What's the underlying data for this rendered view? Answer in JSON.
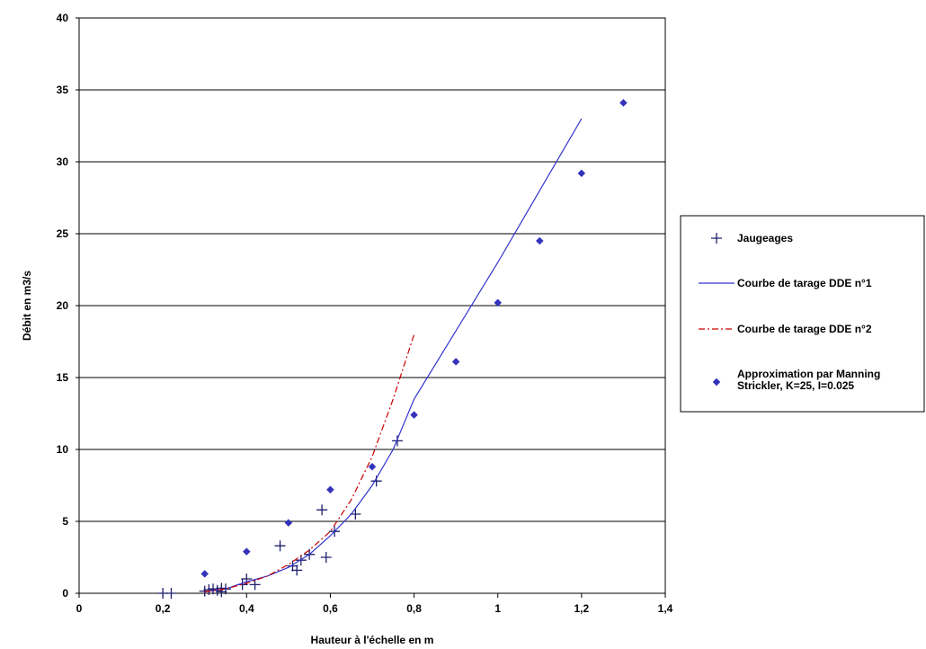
{
  "chart_data": {
    "type": "scatter",
    "xlabel": "Hauteur à l'échelle en m",
    "ylabel": "Débit en m3/s",
    "xlim": [
      0,
      1.4
    ],
    "ylim": [
      0,
      40
    ],
    "x_ticks": [
      "0",
      "0,2",
      "0,4",
      "0,6",
      "0,8",
      "1",
      "1,2",
      "1,4"
    ],
    "x_tick_values": [
      0,
      0.2,
      0.4,
      0.6,
      0.8,
      1.0,
      1.2,
      1.4
    ],
    "y_ticks": [
      "0",
      "5",
      "10",
      "15",
      "20",
      "25",
      "30",
      "35",
      "40"
    ],
    "y_tick_values": [
      0,
      5,
      10,
      15,
      20,
      25,
      30,
      35,
      40
    ],
    "grid": "horizontal",
    "legend_position": "right",
    "series": [
      {
        "name": "Jaugeages",
        "type": "scatter",
        "marker": "plus",
        "color": "#1f1f6e",
        "points": [
          [
            0.2,
            0.0
          ],
          [
            0.22,
            0.0
          ],
          [
            0.3,
            0.15
          ],
          [
            0.31,
            0.25
          ],
          [
            0.32,
            0.3
          ],
          [
            0.33,
            0.2
          ],
          [
            0.34,
            0.35
          ],
          [
            0.34,
            0.1
          ],
          [
            0.35,
            0.3
          ],
          [
            0.39,
            0.6
          ],
          [
            0.4,
            1.0
          ],
          [
            0.42,
            0.6
          ],
          [
            0.48,
            3.3
          ],
          [
            0.51,
            1.9
          ],
          [
            0.52,
            1.6
          ],
          [
            0.53,
            2.3
          ],
          [
            0.55,
            2.7
          ],
          [
            0.58,
            5.8
          ],
          [
            0.59,
            2.5
          ],
          [
            0.61,
            4.3
          ],
          [
            0.66,
            5.5
          ],
          [
            0.71,
            7.8
          ],
          [
            0.76,
            10.6
          ]
        ]
      },
      {
        "name": "Courbe de tarage DDE n°1",
        "type": "line",
        "style": "solid",
        "color": "#3333cc",
        "points": [
          [
            0.3,
            0.1
          ],
          [
            0.35,
            0.3
          ],
          [
            0.4,
            0.8
          ],
          [
            0.45,
            1.2
          ],
          [
            0.5,
            1.8
          ],
          [
            0.55,
            2.7
          ],
          [
            0.6,
            4.0
          ],
          [
            0.65,
            5.5
          ],
          [
            0.7,
            7.5
          ],
          [
            0.75,
            10.0
          ],
          [
            0.8,
            13.5
          ],
          [
            1.0,
            23.0
          ],
          [
            1.2,
            33.0
          ]
        ]
      },
      {
        "name": "Courbe de tarage DDE n°2",
        "type": "line",
        "style": "dash-dot",
        "color": "#cc0000",
        "points": [
          [
            0.3,
            0.1
          ],
          [
            0.35,
            0.3
          ],
          [
            0.4,
            0.7
          ],
          [
            0.45,
            1.2
          ],
          [
            0.5,
            2.0
          ],
          [
            0.55,
            3.0
          ],
          [
            0.6,
            4.3
          ],
          [
            0.65,
            6.5
          ],
          [
            0.7,
            9.5
          ],
          [
            0.75,
            13.5
          ],
          [
            0.8,
            18.0
          ]
        ]
      },
      {
        "name": "Approximation par Manning Strickler, K=25, I=0.025",
        "type": "scatter",
        "marker": "diamond",
        "color": "#3333bb",
        "points": [
          [
            0.3,
            1.35
          ],
          [
            0.4,
            2.9
          ],
          [
            0.5,
            4.9
          ],
          [
            0.6,
            7.2
          ],
          [
            0.7,
            8.8
          ],
          [
            0.8,
            12.4
          ],
          [
            0.9,
            16.1
          ],
          [
            1.0,
            20.2
          ],
          [
            1.1,
            24.5
          ],
          [
            1.2,
            29.2
          ],
          [
            1.3,
            34.1
          ]
        ]
      }
    ],
    "legend": [
      {
        "label": "Jaugeages",
        "lines": [
          "Jaugeages"
        ]
      },
      {
        "label": "Courbe de tarage DDE n°1",
        "lines": [
          "Courbe de tarage DDE n°1"
        ]
      },
      {
        "label": "Courbe de tarage DDE n°2",
        "lines": [
          "Courbe de tarage DDE n°2"
        ]
      },
      {
        "label": "Approximation par Manning Strickler, K=25, I=0.025",
        "lines": [
          "Approximation par Manning",
          "Strickler, K=25, I=0.025"
        ]
      }
    ]
  }
}
